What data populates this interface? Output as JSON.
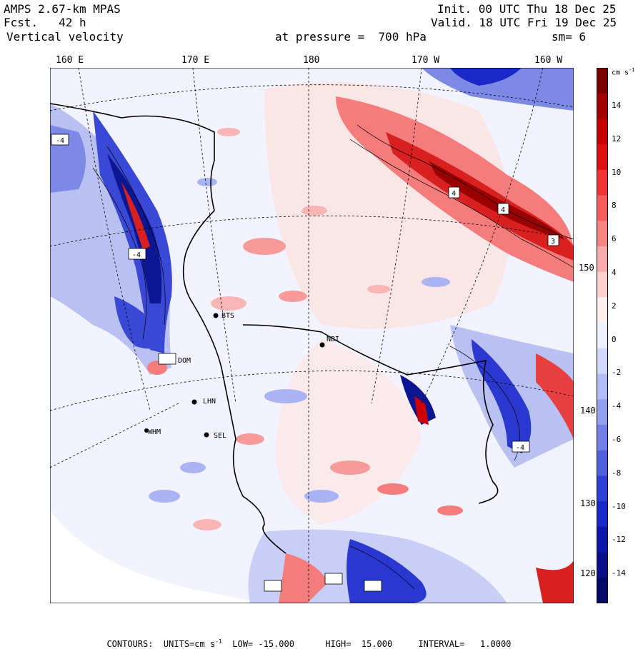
{
  "header": {
    "model": "AMPS 2.67-km MPAS",
    "fcst": "Fcst.   42 h",
    "field": "Vertical velocity",
    "init": "Init. 00 UTC Thu 18 Dec 25",
    "valid": "Valid. 18 UTC Fri 19 Dec 25",
    "level": "at pressure =  700 hPa",
    "smooth": "sm= 6"
  },
  "longitude_labels": [
    "160 E",
    "170 E",
    "180",
    "170 W",
    "160 W"
  ],
  "latitude_labels": [
    "150 W",
    "140 W",
    "130 W",
    "120 W"
  ],
  "colorbar": {
    "units": "cm s",
    "units_exp": "-1",
    "ticks": [
      "14",
      "12",
      "10",
      "8",
      "6",
      "4",
      "2",
      "0",
      "-2",
      "-4",
      "-6",
      "-8",
      "-10",
      "-12",
      "-14"
    ],
    "colors": [
      "#7a0000",
      "#a00000",
      "#c40000",
      "#dd1010",
      "#ee3434",
      "#f55c5c",
      "#f98484",
      "#fbaaaa",
      "#fdd0d0",
      "#fff0f0",
      "#eef0ff",
      "#d2d8fb",
      "#b3bdf5",
      "#929fee",
      "#7180e6",
      "#5060dd",
      "#3040d5",
      "#1a28c8",
      "#0c16aa",
      "#08108a",
      "#050a6a"
    ]
  },
  "stations": [
    {
      "id": "BTS",
      "label": "BTS"
    },
    {
      "id": "NBI",
      "label": "NBI"
    },
    {
      "id": "DOM",
      "label": "DOM"
    },
    {
      "id": "LHN",
      "label": "LHN"
    },
    {
      "id": "SEL",
      "label": "SEL"
    },
    {
      "id": "WHM",
      "label": "WHM"
    }
  ],
  "footer": {
    "contours": "CONTOURS:  UNITS=cm s",
    "units_exp": "-1",
    "rest": "  LOW= -15.000      HIGH=  15.000     INTERVAL=   1.0000"
  }
}
